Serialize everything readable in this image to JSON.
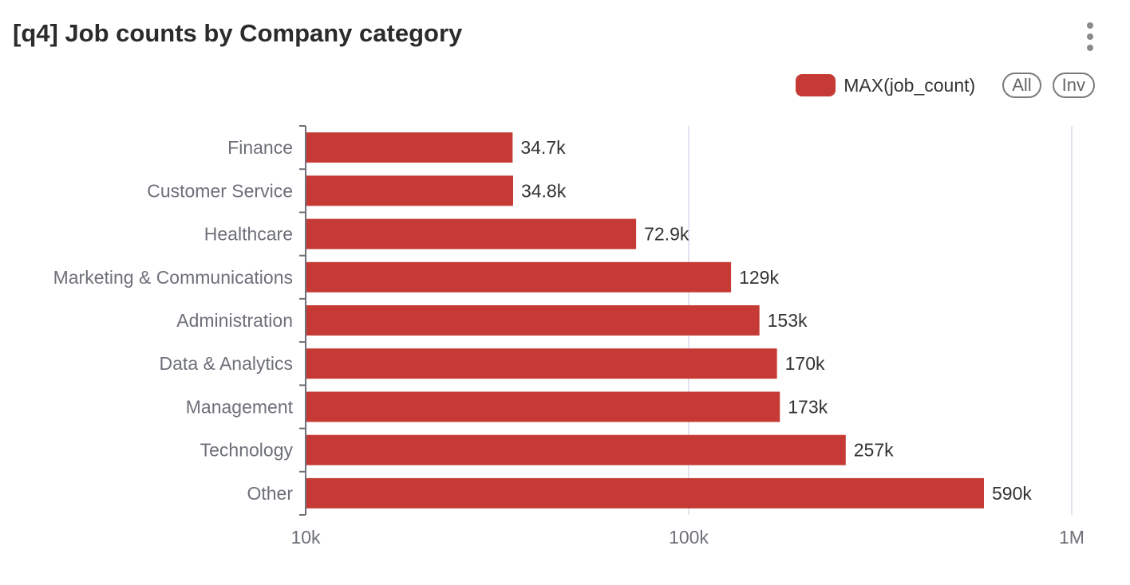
{
  "panel": {
    "title": "[q4] Job counts by Company category"
  },
  "legend": {
    "series_label": "MAX(job_count)",
    "all_label": "All",
    "inv_label": "Inv"
  },
  "colors": {
    "bar": "#c53a34",
    "grid": "#dcdcec",
    "axis": "#6e7079"
  },
  "icons": {
    "menu": "more-vertical-icon"
  },
  "chart_data": {
    "type": "bar",
    "orientation": "horizontal",
    "x_scale": "log",
    "xlim": [
      10000,
      1000000
    ],
    "x_ticks": [
      {
        "value": 10000,
        "label": "10k"
      },
      {
        "value": 100000,
        "label": "100k"
      },
      {
        "value": 1000000,
        "label": "1M"
      }
    ],
    "grid": true,
    "legend_position": "top-right",
    "series": [
      {
        "name": "MAX(job_count)",
        "color": "#c53a34",
        "categories": [
          "Finance",
          "Customer Service",
          "Healthcare",
          "Marketing & Communications",
          "Administration",
          "Data & Analytics",
          "Management",
          "Technology",
          "Other"
        ],
        "values": [
          34700,
          34800,
          72900,
          129000,
          153000,
          170000,
          173000,
          257000,
          590000
        ],
        "labels": [
          "34.7k",
          "34.8k",
          "72.9k",
          "129k",
          "153k",
          "170k",
          "173k",
          "257k",
          "590k"
        ]
      }
    ]
  }
}
